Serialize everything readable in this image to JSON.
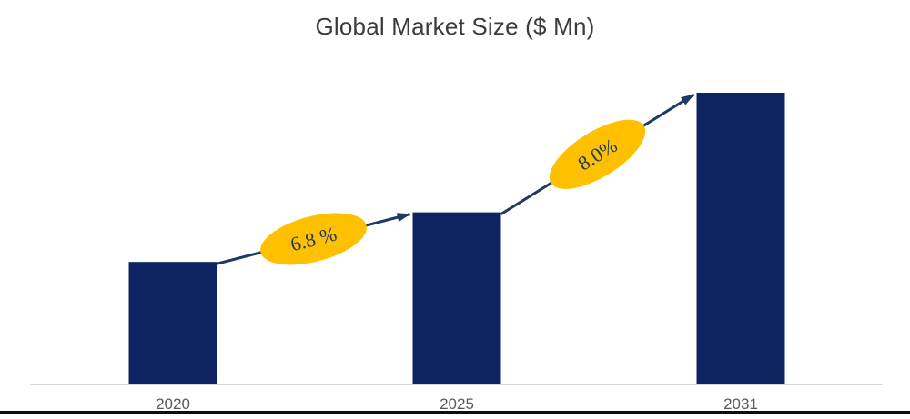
{
  "chart_data": {
    "type": "bar",
    "title": "Global Market Size ($ Mn)",
    "categories": [
      "2020",
      "2025",
      "2031"
    ],
    "values": [
      42,
      59,
      100
    ],
    "value_scale": "relative index estimated from bar heights (no y-axis labels shown); 2031 = 100",
    "xlabel": "",
    "ylabel": "",
    "grid": false,
    "legend": false,
    "annotations": [
      {
        "label": "6.8 %",
        "from": "2020",
        "to": "2025",
        "shape": "ellipse-on-arrow"
      },
      {
        "label": "8.0%",
        "from": "2025",
        "to": "2031",
        "shape": "ellipse-on-arrow"
      }
    ],
    "colors": {
      "bar": "#0E2462",
      "arrow": "#1F3864",
      "annotation_fill": "#FFC000",
      "annotation_text": "#1F3864",
      "axis_line": "#D9D9D9",
      "tick_label": "#595959",
      "title": "#3B3B3B",
      "bottom_border": "#0D0D0D"
    }
  }
}
